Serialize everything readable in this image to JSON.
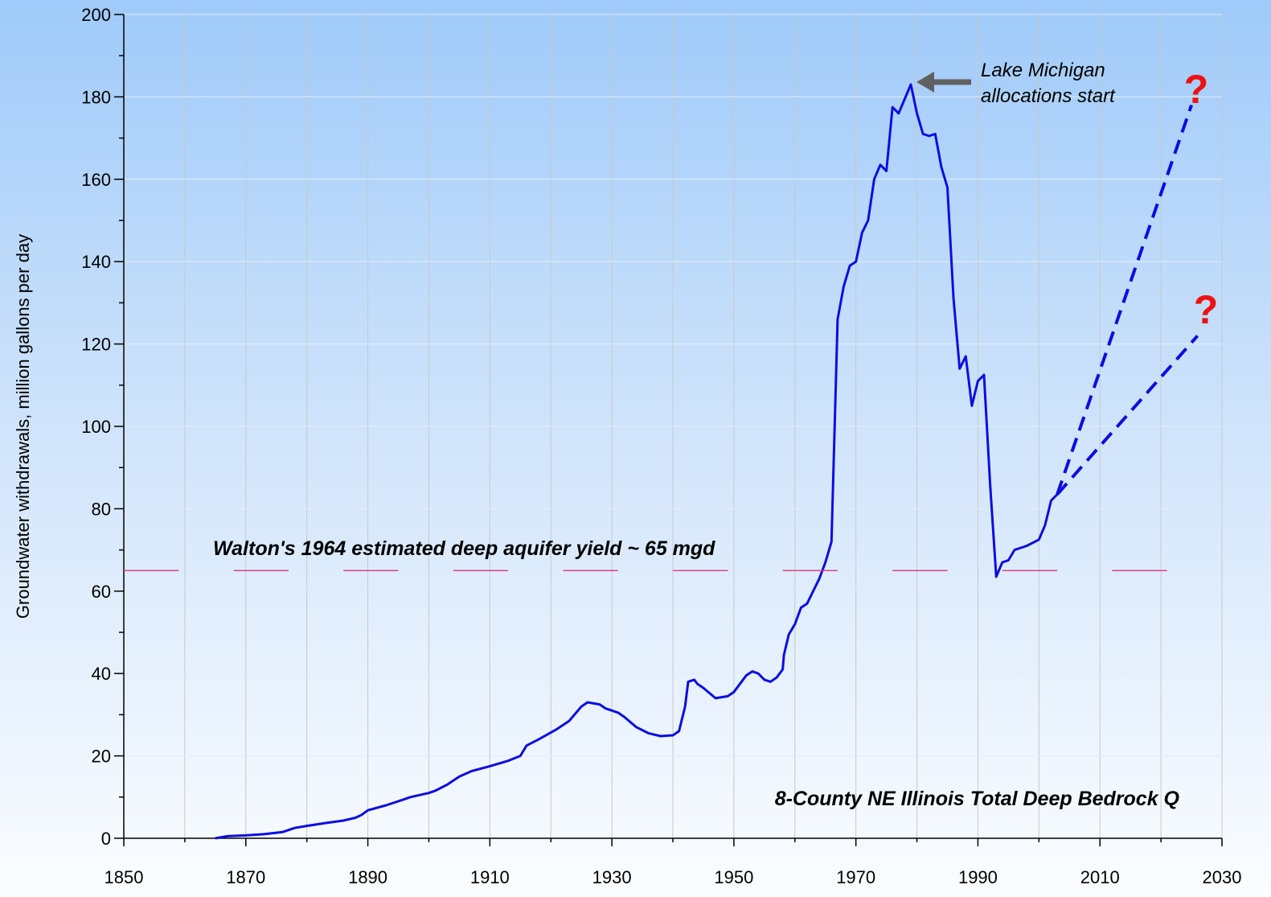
{
  "chart_data": {
    "type": "line",
    "ylabel": "Groundwater withdrawals, million gallons per day",
    "xlim": [
      1850,
      2030
    ],
    "ylim": [
      0,
      200
    ],
    "xticks": [
      1850,
      1870,
      1890,
      1910,
      1930,
      1950,
      1970,
      1990,
      2010,
      2030
    ],
    "xminorticks": [
      1860,
      1880,
      1900,
      1920,
      1940,
      1960,
      1980,
      2000,
      2020
    ],
    "yticks": [
      0,
      20,
      40,
      60,
      80,
      100,
      120,
      140,
      160,
      180,
      200
    ],
    "yminorticks": [
      10,
      30,
      50,
      70,
      90,
      110,
      130,
      150,
      170,
      190
    ],
    "grid": true,
    "series": [
      {
        "color": "#0d0de0",
        "x": [
          1865,
          1867,
          1870,
          1873,
          1876,
          1878,
          1880,
          1883,
          1886,
          1888,
          1889,
          1890,
          1893,
          1896,
          1897,
          1900,
          1901,
          1903,
          1905,
          1907,
          1910,
          1913,
          1915,
          1916,
          1918,
          1921,
          1923,
          1925,
          1926,
          1928,
          1929,
          1931,
          1932,
          1934,
          1936,
          1938,
          1940,
          1941,
          1942,
          1942.5,
          1943.5,
          1944,
          1945,
          1947,
          1949,
          1950,
          1952,
          1953,
          1954,
          1955,
          1956,
          1957,
          1958,
          1958.2,
          1959,
          1960,
          1961,
          1962,
          1963,
          1964,
          1965,
          1966,
          1967,
          1968,
          1969,
          1970,
          1971,
          1972,
          1973,
          1974,
          1975,
          1976,
          1977,
          1979,
          1980,
          1981,
          1982,
          1983,
          1984,
          1985,
          1986,
          1987,
          1988,
          1989,
          1990,
          1991,
          1992,
          1993,
          1994,
          1995,
          1996,
          1998,
          2000,
          2001,
          2002,
          2003
        ],
        "values": [
          0,
          0.5,
          0.7,
          1,
          1.5,
          2.5,
          3,
          3.7,
          4.3,
          5,
          5.7,
          6.8,
          8,
          9.5,
          10,
          11,
          11.5,
          13,
          15,
          16.3,
          17.5,
          18.8,
          20,
          22.5,
          24,
          26.5,
          28.5,
          32,
          33,
          32.5,
          31.5,
          30.5,
          29.5,
          27,
          25.5,
          24.8,
          25,
          26,
          32,
          38,
          38.5,
          37.5,
          36.5,
          34,
          34.5,
          35.5,
          39.5,
          40.5,
          40,
          38.5,
          38,
          39,
          41,
          44.5,
          49.5,
          52,
          56,
          57,
          60,
          63,
          67,
          72,
          126,
          134,
          139,
          140,
          147,
          150,
          160,
          163.5,
          162,
          177.5,
          176,
          183,
          176,
          171,
          170.5,
          171,
          163,
          158,
          131,
          114,
          117,
          105,
          111,
          112.5,
          86,
          63.5,
          67,
          67.5,
          70,
          71,
          72.5,
          76,
          82,
          83.5
        ]
      },
      {
        "color": "#0d0de0",
        "dashed": true,
        "x": [
          2003,
          2025
        ],
        "values": [
          83.5,
          178
        ]
      },
      {
        "color": "#0d0de0",
        "dashed": true,
        "x": [
          2003,
          2026
        ],
        "values": [
          83.5,
          122
        ]
      },
      {
        "color": "#e0407f",
        "reference": true,
        "x": [
          1850,
          2022
        ],
        "values": [
          65,
          65
        ]
      }
    ],
    "annotations": [
      {
        "text": "Walton's 1964 estimated deep aquifer yield ~ 65 mgd"
      },
      {
        "lines": [
          "Lake Michigan",
          "allocations start"
        ]
      },
      {
        "text": "8-County NE Illinois Total Deep Bedrock Q"
      },
      {
        "text": "?",
        "color": "#ee1111"
      },
      {
        "text": "?",
        "color": "#ee1111"
      }
    ]
  }
}
